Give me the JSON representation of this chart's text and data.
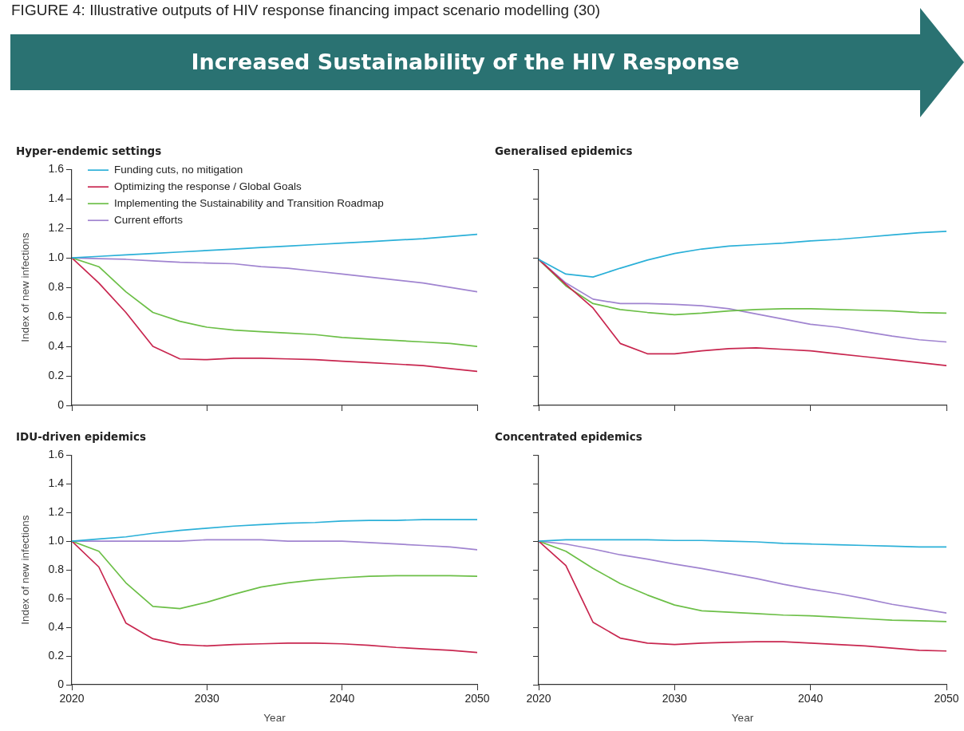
{
  "chart_data": [
    {
      "type": "other",
      "title": "FIGURE 4: Illustrative outputs of HIV response financing impact scenario modelling (30)",
      "annotations": [
        "Increased Sustainability of the HIV Response"
      ]
    },
    {
      "type": "line",
      "title": "Hyper-endemic settings",
      "ylabel": "Index of new infections",
      "tick_labels": "y",
      "legend": "top left",
      "x": [
        2020,
        2022,
        2024,
        2026,
        2028,
        2030,
        2032,
        2034,
        2036,
        2038,
        2040,
        2042,
        2044,
        2046,
        2048,
        2050
      ],
      "xlim": [
        2020,
        2050
      ],
      "xticks": [
        {
          "value": 2020,
          "label": null
        },
        {
          "value": 2030,
          "label": null
        },
        {
          "value": 2040,
          "label": null
        },
        {
          "value": 2050,
          "label": null
        }
      ],
      "ylim": [
        0,
        1.6
      ],
      "yticks": [
        {
          "value": 0,
          "label": "0"
        },
        {
          "value": 0.2,
          "label": "0.2"
        },
        {
          "value": 0.4,
          "label": "0.4"
        },
        {
          "value": 0.6,
          "label": "0.6"
        },
        {
          "value": 0.8,
          "label": "0.8"
        },
        {
          "value": 1,
          "label": "1.0"
        },
        {
          "value": 1.2,
          "label": "1.2"
        },
        {
          "value": 1.4,
          "label": "1.4"
        },
        {
          "value": 1.6,
          "label": "1.6"
        }
      ],
      "series": [
        {
          "name": "Funding cuts, no mitigation",
          "color": "#2bb0d8",
          "values": [
            1.0,
            1.01,
            1.02,
            1.03,
            1.04,
            1.05,
            1.06,
            1.07,
            1.08,
            1.09,
            1.1,
            1.11,
            1.12,
            1.13,
            1.145,
            1.16
          ]
        },
        {
          "name": "Optimizing the response / Global Goals",
          "color": "#c8264f",
          "values": [
            1.0,
            0.83,
            0.63,
            0.4,
            0.315,
            0.31,
            0.32,
            0.32,
            0.315,
            0.31,
            0.3,
            0.29,
            0.28,
            0.27,
            0.25,
            0.23
          ]
        },
        {
          "name": "Implementing the Sustainability and Transition Roadmap",
          "color": "#6cbf47",
          "values": [
            1.0,
            0.94,
            0.77,
            0.63,
            0.57,
            0.53,
            0.51,
            0.5,
            0.49,
            0.48,
            0.46,
            0.45,
            0.44,
            0.43,
            0.42,
            0.4
          ]
        },
        {
          "name": "Current efforts",
          "color": "#a084d0",
          "values": [
            1.0,
            0.995,
            0.99,
            0.98,
            0.97,
            0.965,
            0.96,
            0.94,
            0.93,
            0.91,
            0.89,
            0.87,
            0.85,
            0.83,
            0.8,
            0.77
          ]
        }
      ]
    },
    {
      "type": "line",
      "title": "Generalised epidemics",
      "tick_labels": false,
      "x": [
        2020,
        2022,
        2024,
        2026,
        2028,
        2030,
        2032,
        2034,
        2036,
        2038,
        2040,
        2042,
        2044,
        2046,
        2048,
        2050
      ],
      "xlim": [
        2020,
        2050
      ],
      "xticks": [
        {
          "value": 2020,
          "label": null
        },
        {
          "value": 2030,
          "label": null
        },
        {
          "value": 2040,
          "label": null
        },
        {
          "value": 2050,
          "label": null
        }
      ],
      "ylim": [
        0,
        1.6
      ],
      "yticks": [
        {
          "value": 0,
          "label": null
        },
        {
          "value": 0.2,
          "label": null
        },
        {
          "value": 0.4,
          "label": null
        },
        {
          "value": 0.6,
          "label": null
        },
        {
          "value": 0.8,
          "label": null
        },
        {
          "value": 1,
          "label": null
        },
        {
          "value": 1.2,
          "label": null
        },
        {
          "value": 1.4,
          "label": null
        },
        {
          "value": 1.6,
          "label": null
        }
      ],
      "series": [
        {
          "color": "#2bb0d8",
          "values": [
            0.99,
            0.89,
            0.87,
            0.93,
            0.985,
            1.03,
            1.06,
            1.08,
            1.09,
            1.1,
            1.115,
            1.125,
            1.14,
            1.155,
            1.17,
            1.18
          ]
        },
        {
          "color": "#c8264f",
          "values": [
            0.99,
            0.82,
            0.66,
            0.42,
            0.35,
            0.35,
            0.37,
            0.385,
            0.39,
            0.38,
            0.37,
            0.35,
            0.33,
            0.31,
            0.29,
            0.27
          ]
        },
        {
          "color": "#6cbf47",
          "values": [
            0.99,
            0.81,
            0.69,
            0.65,
            0.63,
            0.615,
            0.625,
            0.64,
            0.65,
            0.655,
            0.655,
            0.65,
            0.645,
            0.64,
            0.63,
            0.625
          ]
        },
        {
          "color": "#a084d0",
          "values": [
            0.99,
            0.83,
            0.72,
            0.69,
            0.69,
            0.685,
            0.675,
            0.655,
            0.62,
            0.585,
            0.55,
            0.53,
            0.5,
            0.47,
            0.445,
            0.43
          ]
        }
      ]
    },
    {
      "type": "line",
      "title": "IDU-driven epidemics",
      "xlabel": "Year",
      "ylabel": "Index of new infections",
      "x": [
        2020,
        2022,
        2024,
        2026,
        2028,
        2030,
        2032,
        2034,
        2036,
        2038,
        2040,
        2042,
        2044,
        2046,
        2048,
        2050
      ],
      "xlim": [
        2020,
        2050
      ],
      "xticks": [
        2020,
        2030,
        2040,
        2050
      ],
      "ylim": [
        0,
        1.6
      ],
      "yticks": [
        {
          "value": 0,
          "label": "0"
        },
        {
          "value": 0.2,
          "label": "0.2"
        },
        {
          "value": 0.4,
          "label": "0.4"
        },
        {
          "value": 0.6,
          "label": "0.6"
        },
        {
          "value": 0.8,
          "label": "0.8"
        },
        {
          "value": 1,
          "label": "1.0"
        },
        {
          "value": 1.2,
          "label": "1.2"
        },
        {
          "value": 1.4,
          "label": "1.4"
        },
        {
          "value": 1.6,
          "label": "1.6"
        }
      ],
      "series": [
        {
          "color": "#2bb0d8",
          "values": [
            1.0,
            1.015,
            1.03,
            1.055,
            1.075,
            1.09,
            1.105,
            1.115,
            1.125,
            1.13,
            1.14,
            1.145,
            1.145,
            1.15,
            1.15,
            1.15
          ]
        },
        {
          "color": "#c8264f",
          "values": [
            1.0,
            0.82,
            0.43,
            0.32,
            0.28,
            0.27,
            0.28,
            0.285,
            0.29,
            0.29,
            0.285,
            0.275,
            0.26,
            0.25,
            0.24,
            0.225
          ]
        },
        {
          "color": "#6cbf47",
          "values": [
            1.0,
            0.93,
            0.71,
            0.545,
            0.53,
            0.575,
            0.63,
            0.68,
            0.71,
            0.73,
            0.745,
            0.755,
            0.76,
            0.76,
            0.76,
            0.755
          ]
        },
        {
          "color": "#a084d0",
          "values": [
            1.0,
            1.0,
            1.0,
            1.0,
            1.0,
            1.01,
            1.01,
            1.01,
            1.0,
            1.0,
            1.0,
            0.99,
            0.98,
            0.97,
            0.96,
            0.94
          ]
        }
      ]
    },
    {
      "type": "line",
      "title": "Concentrated epidemics",
      "xlabel": "Year",
      "tick_labels": "x",
      "x": [
        2020,
        2022,
        2024,
        2026,
        2028,
        2030,
        2032,
        2034,
        2036,
        2038,
        2040,
        2042,
        2044,
        2046,
        2048,
        2050
      ],
      "xlim": [
        2020,
        2050
      ],
      "xticks": [
        2020,
        2030,
        2040,
        2050
      ],
      "ylim": [
        0,
        1.6
      ],
      "yticks": [
        {
          "value": 0,
          "label": null
        },
        {
          "value": 0.2,
          "label": null
        },
        {
          "value": 0.4,
          "label": null
        },
        {
          "value": 0.6,
          "label": null
        },
        {
          "value": 0.8,
          "label": null
        },
        {
          "value": 1,
          "label": null
        },
        {
          "value": 1.2,
          "label": null
        },
        {
          "value": 1.4,
          "label": null
        },
        {
          "value": 1.6,
          "label": null
        }
      ],
      "series": [
        {
          "color": "#2bb0d8",
          "values": [
            1.0,
            1.01,
            1.01,
            1.01,
            1.01,
            1.005,
            1.005,
            1.0,
            0.995,
            0.985,
            0.98,
            0.975,
            0.97,
            0.965,
            0.96,
            0.96
          ]
        },
        {
          "color": "#c8264f",
          "values": [
            1.0,
            0.83,
            0.435,
            0.325,
            0.29,
            0.28,
            0.29,
            0.295,
            0.3,
            0.3,
            0.29,
            0.28,
            0.27,
            0.255,
            0.24,
            0.235
          ]
        },
        {
          "color": "#6cbf47",
          "values": [
            1.0,
            0.93,
            0.81,
            0.705,
            0.625,
            0.555,
            0.515,
            0.505,
            0.495,
            0.485,
            0.48,
            0.47,
            0.46,
            0.45,
            0.445,
            0.44
          ]
        },
        {
          "color": "#a084d0",
          "values": [
            1.0,
            0.98,
            0.945,
            0.905,
            0.875,
            0.84,
            0.81,
            0.775,
            0.74,
            0.7,
            0.665,
            0.635,
            0.6,
            0.56,
            0.53,
            0.5
          ]
        }
      ]
    }
  ]
}
